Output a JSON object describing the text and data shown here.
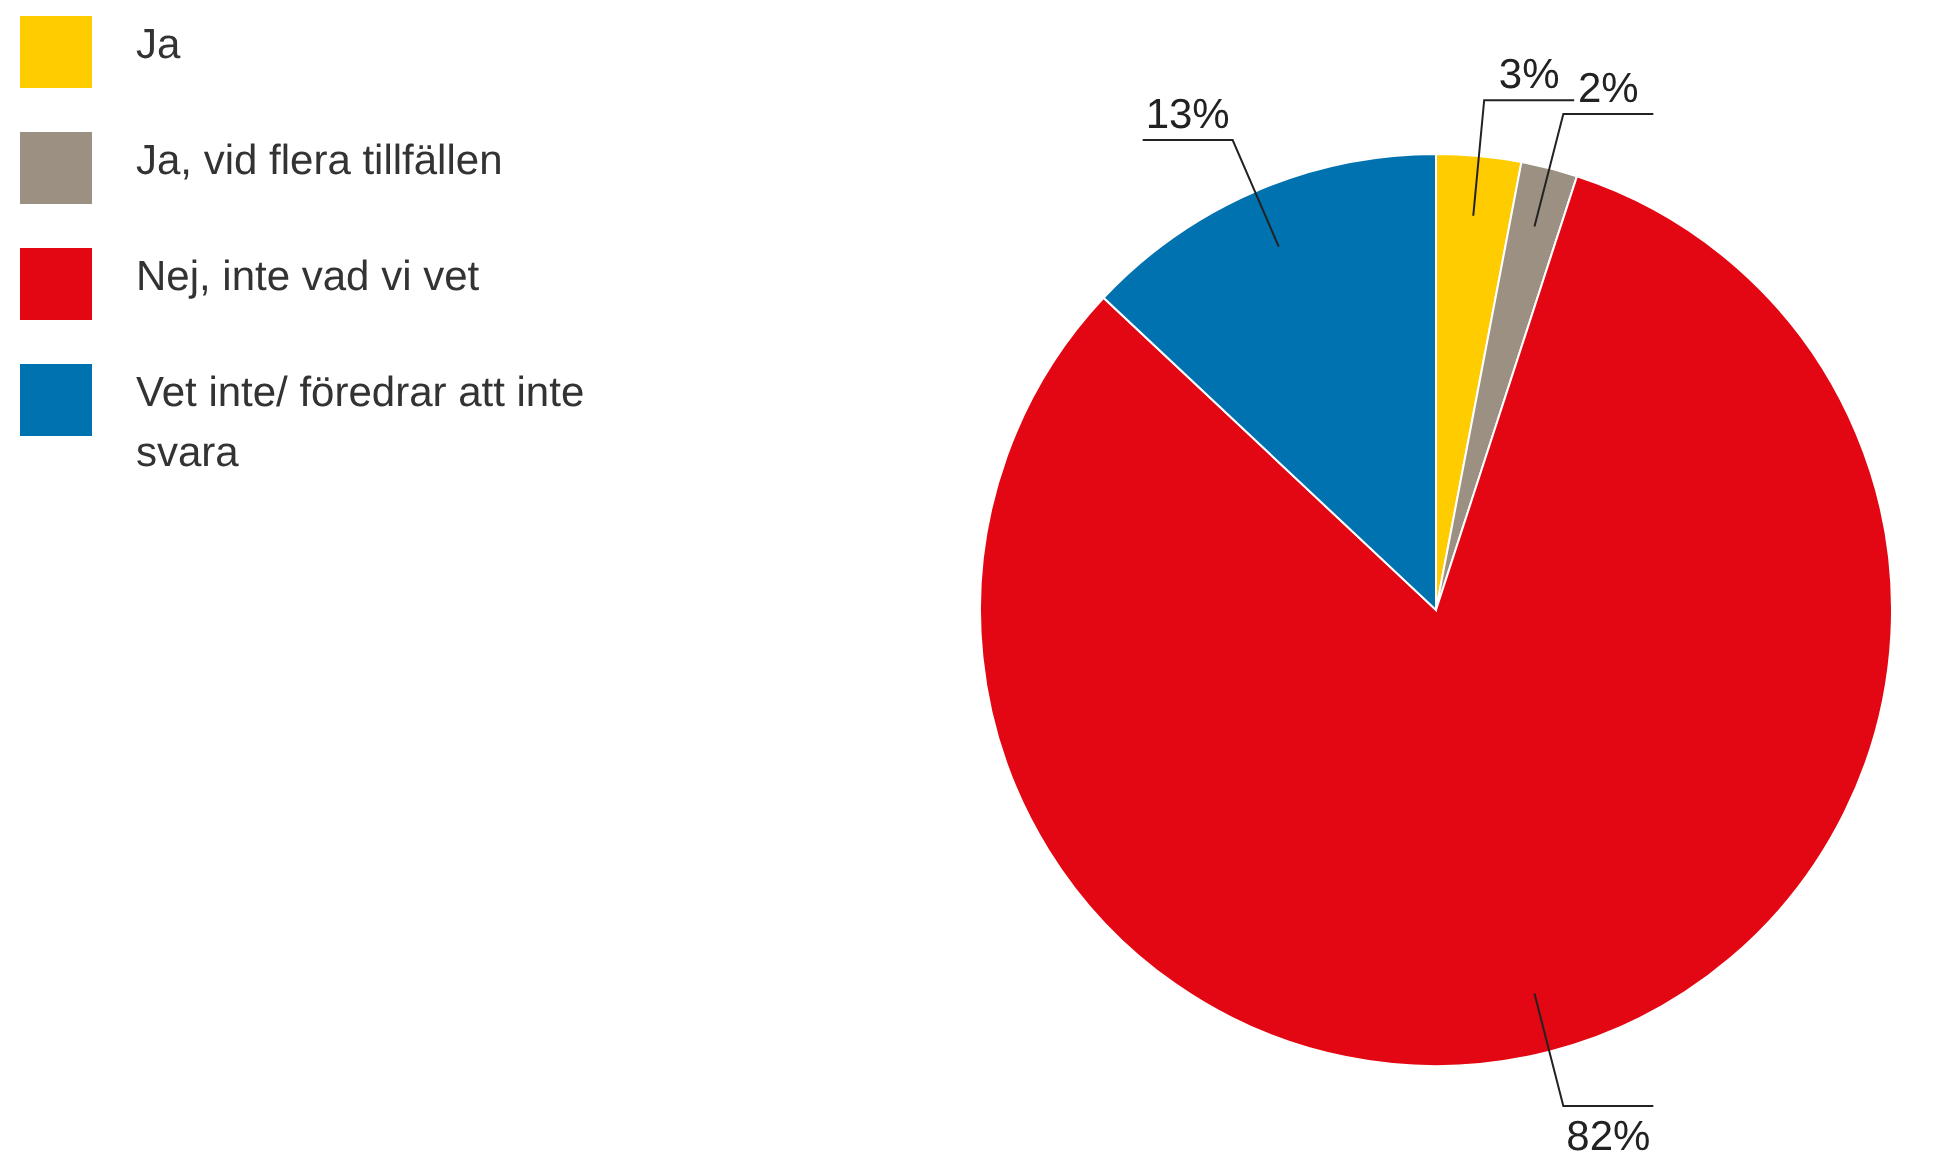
{
  "chart_data": {
    "type": "pie",
    "categories": [
      "Ja",
      "Ja, vid flera tillfällen",
      "Nej, inte vad vi vet",
      "Vet inte/ föredrar att inte svara"
    ],
    "values": [
      3,
      2,
      82,
      13
    ],
    "colors": [
      "#ffcc00",
      "#9b9082",
      "#e30613",
      "#0072b0"
    ],
    "value_labels": [
      "3%",
      "2%",
      "82%",
      "13%"
    ],
    "legend": "left"
  }
}
